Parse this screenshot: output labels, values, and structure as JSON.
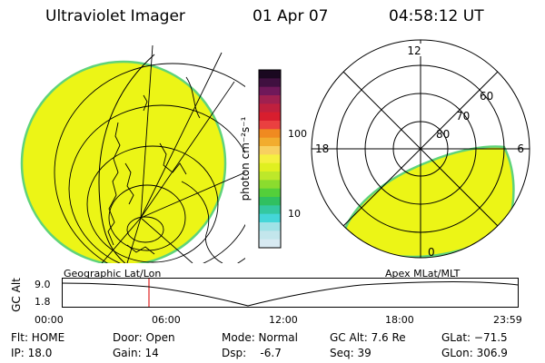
{
  "header": {
    "title": "Ultraviolet Imager",
    "date": "01 Apr 07",
    "time": "04:58:12 UT"
  },
  "left_panel": {
    "label": "Geographic Lat/Lon",
    "fill_color": "#ecf516",
    "edge_color": "#5fd37a"
  },
  "right_panel": {
    "label": "Apex MLat/MLT",
    "hour_labels": {
      "top": "12",
      "left": "18",
      "right": "6",
      "bottom": "0"
    },
    "lat_labels": [
      "60",
      "70",
      "80"
    ]
  },
  "colorbar": {
    "unit_label": "photon cm⁻²s⁻¹",
    "tick_labels": [
      "100",
      "10"
    ],
    "colors": [
      "#d8eaf2",
      "#c3e6ec",
      "#9fe2e6",
      "#44d6d8",
      "#34c8a0",
      "#30c060",
      "#54cf3a",
      "#8bdc2e",
      "#bde82a",
      "#e0f020",
      "#f5f040",
      "#f8d060",
      "#f2ac2e",
      "#f08a20",
      "#ea4040",
      "#d81e2e",
      "#c0203e",
      "#a02050",
      "#70185a",
      "#401040",
      "#1a0820"
    ]
  },
  "altitude_plot": {
    "axis_label": "GC Alt",
    "y_ticks": [
      "9.0",
      "1.8"
    ],
    "x_ticks": [
      "00:00",
      "06:00",
      "12:00",
      "18:00",
      "23:59"
    ],
    "marker_color": "#e02020"
  },
  "status": {
    "flt": "Flt: HOME",
    "ip": "IP: 18.0",
    "door": "Door: Open",
    "gain": "Gain: 14",
    "mode": "Mode: Normal",
    "dsp": "Dsp:    -6.7",
    "gc_alt": "GC Alt: 7.6 Re",
    "seq": "Seq: 39",
    "glat": "GLat: −71.5",
    "glon": "GLon: 306.9"
  }
}
